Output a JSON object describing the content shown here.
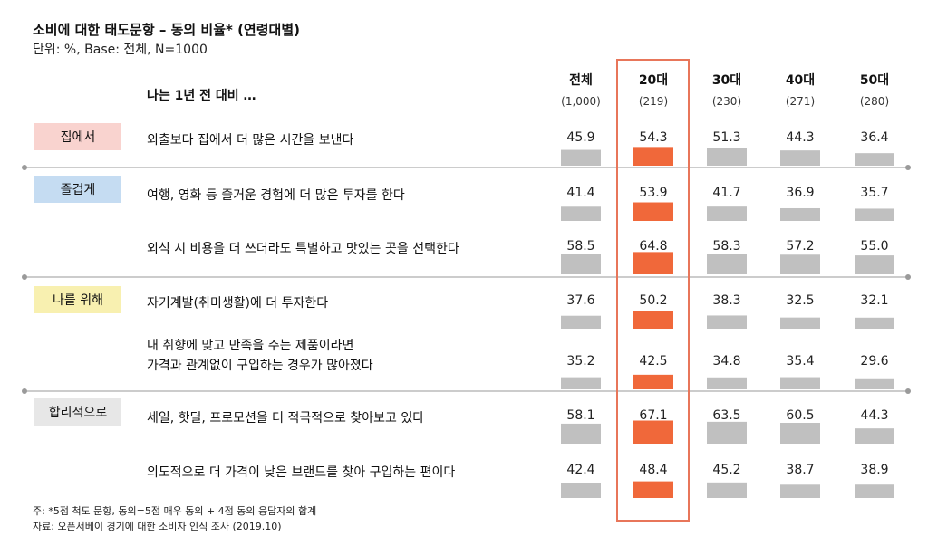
{
  "title": "소비에 대한 태도문항 – 동의 비율* (연령대별)",
  "subtitle": "단위: %, Base: 전체, N=1000",
  "row_prefix": "나는 1년 전 대비 …",
  "footnote": "주: *5점 척도 문항, 동의=5점 매우 동의 + 4점 동의 응답자의 합계",
  "source": "자료: 오픈서베이 경기에 대한 소비자 인식 조사 (2019.10)",
  "colors": {
    "bar": "#c0c0c0",
    "highlight_bar": "#f0683a",
    "highlight_box": "#e8765a",
    "divider": "#9a9a9a"
  },
  "chart_data": {
    "type": "bar",
    "columns": [
      {
        "label": "전체",
        "n": "(1,000)"
      },
      {
        "label": "20대",
        "n": "(219)"
      },
      {
        "label": "30대",
        "n": "(230)"
      },
      {
        "label": "40대",
        "n": "(271)"
      },
      {
        "label": "50대",
        "n": "(280)"
      }
    ],
    "highlight_column": 1,
    "groups": [
      {
        "label": "집에서",
        "color": "#f9d3cf"
      },
      {
        "label": "즐겁게",
        "color": "#c5dcf2"
      },
      {
        "label": "나를 위해",
        "color": "#f8f0b0"
      },
      {
        "label": "합리적으로",
        "color": "#e7e7e7"
      }
    ],
    "rows": [
      {
        "group": 0,
        "lines": [
          "외출보다 집에서 더 많은 시간을 보낸다"
        ],
        "values": [
          45.9,
          54.3,
          51.3,
          44.3,
          36.4
        ]
      },
      {
        "group": 1,
        "lines": [
          "여행, 영화 등 즐거운 경험에 더 많은 투자를 한다"
        ],
        "values": [
          41.4,
          53.9,
          41.7,
          36.9,
          35.7
        ]
      },
      {
        "group": 1,
        "lines": [
          "외식 시 비용을 더 쓰더라도 특별하고 맛있는 곳을 선택한다"
        ],
        "values": [
          58.5,
          64.8,
          58.3,
          57.2,
          55.0
        ]
      },
      {
        "group": 2,
        "lines": [
          "자기계발(취미생활)에 더 투자한다"
        ],
        "values": [
          37.6,
          50.2,
          38.3,
          32.5,
          32.1
        ]
      },
      {
        "group": 2,
        "lines": [
          "내 취향에 맞고 만족을 주는 제품이라면",
          "가격과 관계없이 구입하는 경우가 많아졌다"
        ],
        "values": [
          35.2,
          42.5,
          34.8,
          35.4,
          29.6
        ]
      },
      {
        "group": 3,
        "lines": [
          "세일, 핫딜, 프로모션을 더 적극적으로 찾아보고 있다"
        ],
        "values": [
          58.1,
          67.1,
          63.5,
          60.5,
          44.3
        ]
      },
      {
        "group": 3,
        "lines": [
          "의도적으로 더 가격이 낮은 브랜드를 찾아 구입하는 편이다"
        ],
        "values": [
          42.4,
          48.4,
          45.2,
          38.7,
          38.9
        ]
      }
    ]
  }
}
